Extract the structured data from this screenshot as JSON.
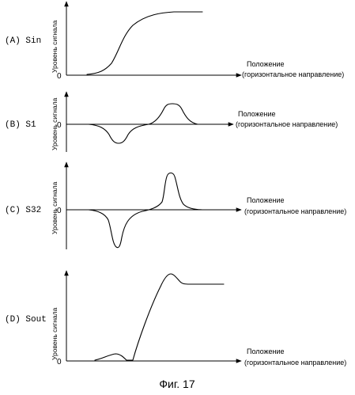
{
  "figure": {
    "caption": "Фиг. 17",
    "x_axis_title": "Положение",
    "x_axis_subtitle": "(горизонтальное направление)",
    "y_axis_title": "Уровень сигнала",
    "origin_label": "0"
  },
  "panels": [
    {
      "id": "A",
      "label": "(A) Sin",
      "signal": "Sin",
      "shows_y_title": true
    },
    {
      "id": "B",
      "label": "(B) S1",
      "signal": "S1",
      "shows_y_title": true
    },
    {
      "id": "C",
      "label": "(C) S32",
      "signal": "S32",
      "shows_y_title": true
    },
    {
      "id": "D",
      "label": "(D) Sout",
      "signal": "Sout",
      "shows_y_title": true
    }
  ]
}
